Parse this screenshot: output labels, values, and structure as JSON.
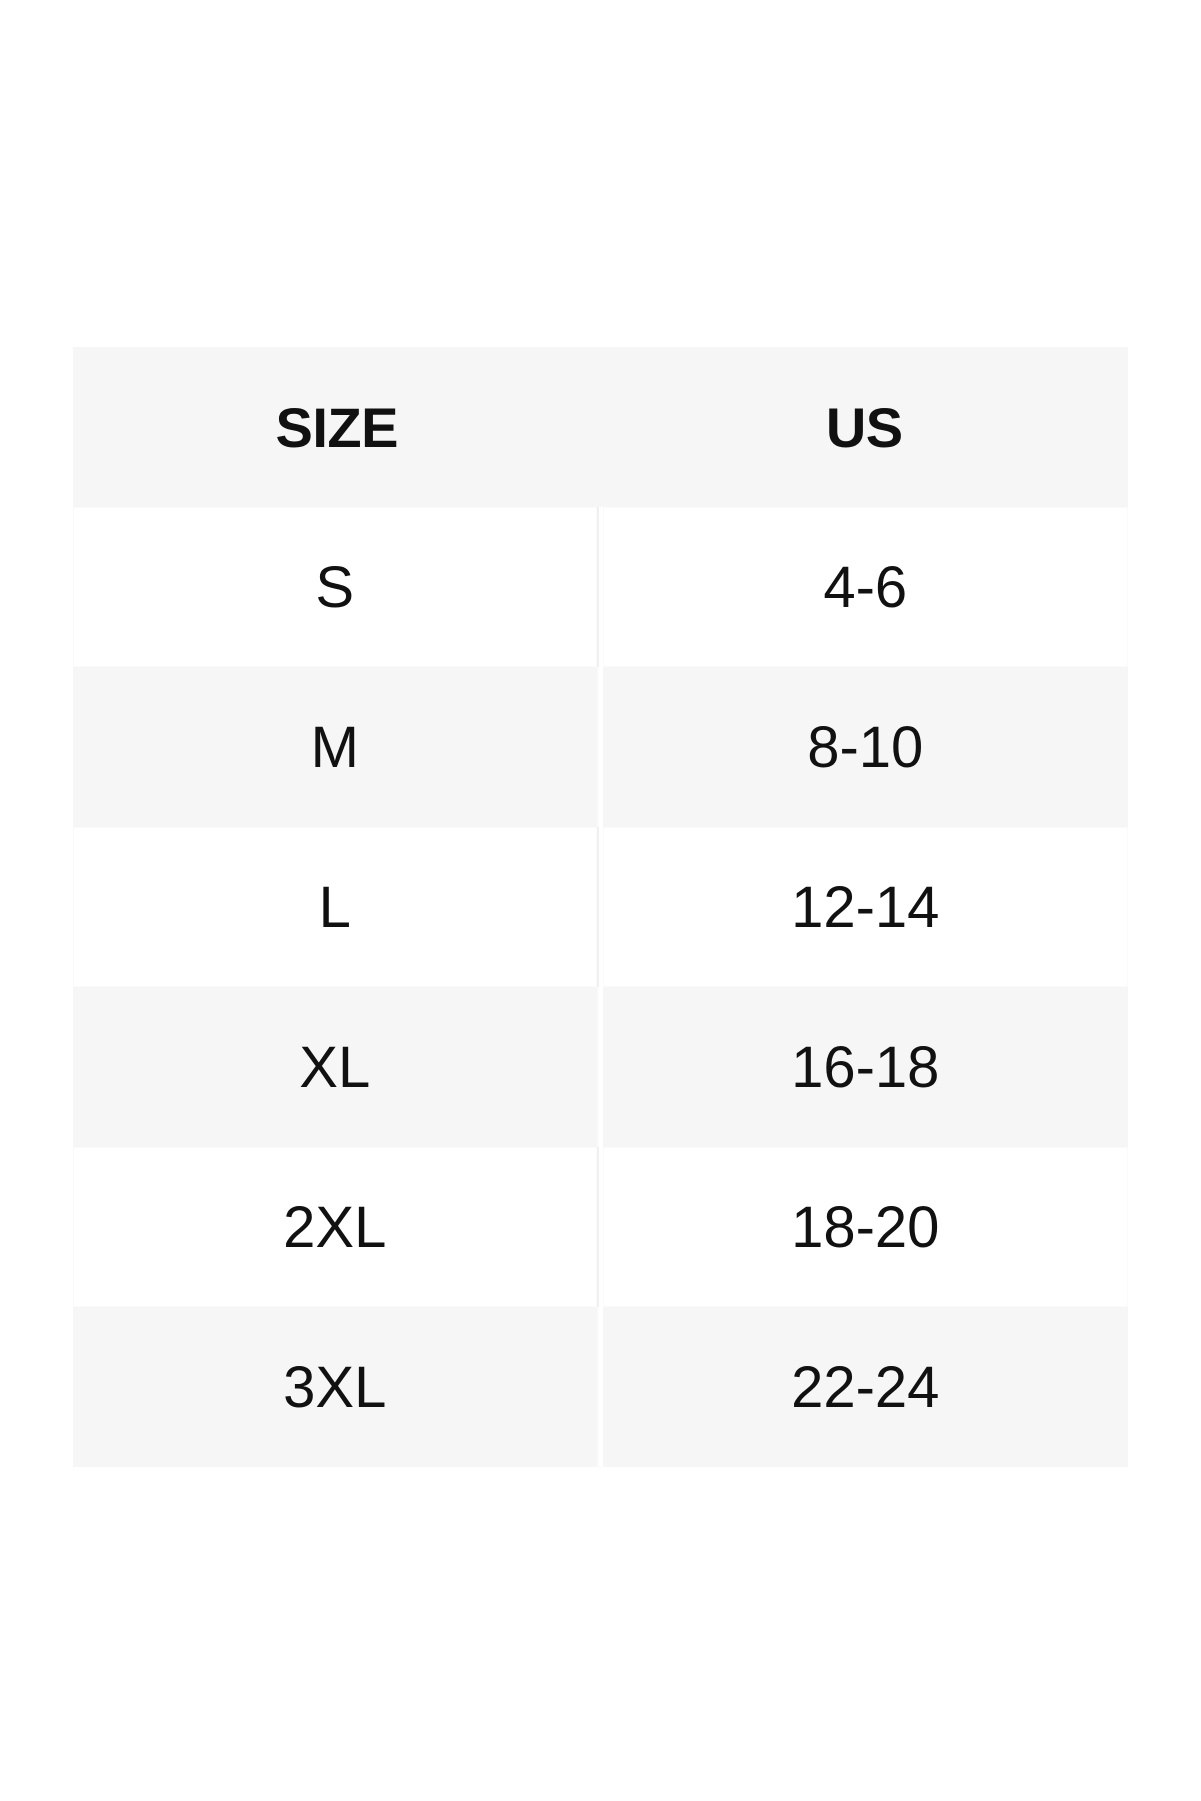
{
  "table": {
    "columns": [
      "SIZE",
      "US"
    ],
    "rows": [
      {
        "size": "S",
        "us": "4-6"
      },
      {
        "size": "M",
        "us": "8-10"
      },
      {
        "size": "L",
        "us": "12-14"
      },
      {
        "size": "XL",
        "us": "16-18"
      },
      {
        "size": "2XL",
        "us": "18-20"
      },
      {
        "size": "3XL",
        "us": "22-24"
      }
    ],
    "colors": {
      "header_bg": "#f6f6f6",
      "alt_row_bg": "#f6f6f6",
      "row_bg": "#ffffff",
      "text": "#111111",
      "divider": "#f0f0f0"
    }
  },
  "chart_data": {
    "type": "table",
    "columns": [
      "SIZE",
      "US"
    ],
    "rows": [
      [
        "S",
        "4-6"
      ],
      [
        "M",
        "8-10"
      ],
      [
        "L",
        "12-14"
      ],
      [
        "XL",
        "16-18"
      ],
      [
        "2XL",
        "18-20"
      ],
      [
        "3XL",
        "22-24"
      ]
    ],
    "layout_hints": {
      "header_shaded": true,
      "alternating_row_shading": "rows M, XL, 3XL shaded",
      "column_divider": "vertical divider between columns in body rows only"
    }
  }
}
